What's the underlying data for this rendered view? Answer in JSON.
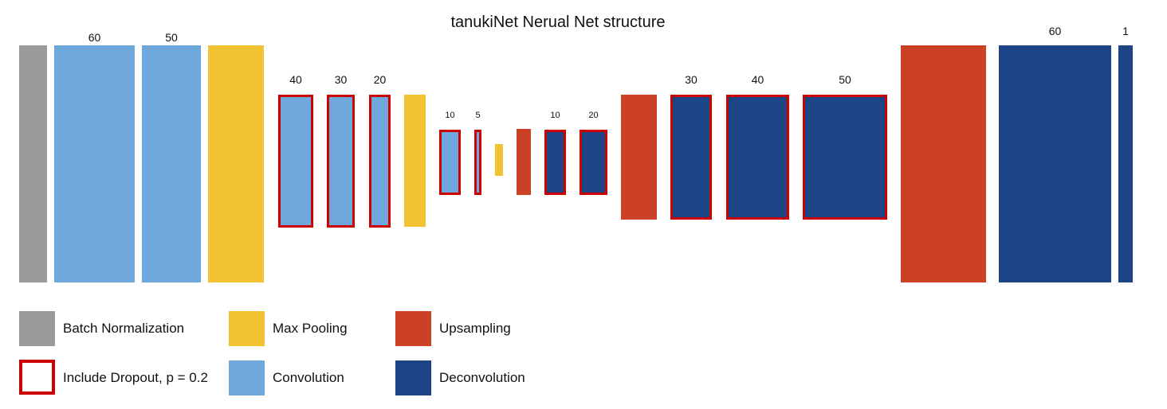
{
  "title": "tanukiNet Nerual Net structure",
  "colors": {
    "batch_norm": "#9b9b9b",
    "convolution": "#6fa8dc",
    "max_pooling": "#f1c232",
    "upsampling": "#cc4125",
    "deconvolution": "#1c4587",
    "dropout_border": "#cc0000"
  },
  "layers": [
    {
      "kind": "batch_norm",
      "label": "",
      "dropout": false
    },
    {
      "kind": "convolution",
      "label": "60",
      "dropout": false
    },
    {
      "kind": "convolution",
      "label": "50",
      "dropout": false
    },
    {
      "kind": "max_pooling",
      "label": "",
      "dropout": false
    },
    {
      "kind": "convolution",
      "label": "40",
      "dropout": true
    },
    {
      "kind": "convolution",
      "label": "30",
      "dropout": true
    },
    {
      "kind": "convolution",
      "label": "20",
      "dropout": true
    },
    {
      "kind": "max_pooling",
      "label": "",
      "dropout": false
    },
    {
      "kind": "convolution",
      "label": "10",
      "dropout": true
    },
    {
      "kind": "convolution",
      "label": "5",
      "dropout": true
    },
    {
      "kind": "max_pooling",
      "label": "",
      "dropout": false
    },
    {
      "kind": "upsampling",
      "label": "",
      "dropout": false
    },
    {
      "kind": "deconvolution",
      "label": "10",
      "dropout": true
    },
    {
      "kind": "deconvolution",
      "label": "20",
      "dropout": true
    },
    {
      "kind": "upsampling",
      "label": "",
      "dropout": false
    },
    {
      "kind": "deconvolution",
      "label": "30",
      "dropout": true
    },
    {
      "kind": "deconvolution",
      "label": "40",
      "dropout": true
    },
    {
      "kind": "deconvolution",
      "label": "50",
      "dropout": true
    },
    {
      "kind": "upsampling",
      "label": "",
      "dropout": false
    },
    {
      "kind": "deconvolution",
      "label": "60",
      "dropout": false
    },
    {
      "kind": "deconvolution",
      "label": "1",
      "dropout": false
    }
  ],
  "legend": [
    {
      "kind": "batch_norm",
      "label": "Batch Normalization"
    },
    {
      "kind": "max_pooling",
      "label": "Max Pooling"
    },
    {
      "kind": "upsampling",
      "label": "Upsampling"
    },
    {
      "kind": "dropout",
      "label": "Include Dropout, p = 0.2"
    },
    {
      "kind": "convolution",
      "label": "Convolution"
    },
    {
      "kind": "deconvolution",
      "label": "Deconvolution"
    }
  ]
}
